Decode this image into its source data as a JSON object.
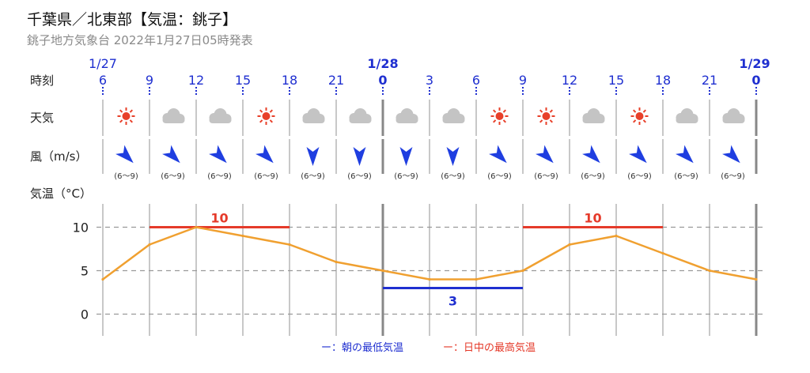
{
  "header": {
    "title": "千葉県／北東部【気温：銚子】",
    "subtitle": "銚子地方気象台 2022年1月27日05時発表"
  },
  "rows": {
    "time": "時刻",
    "weather": "天気",
    "wind": "風（m/s）",
    "temp": "気温（°C）"
  },
  "dates": [
    {
      "label": "1/27",
      "index": 0,
      "bold": false
    },
    {
      "label": "1/28",
      "index": 6,
      "bold": true
    },
    {
      "label": "1/29",
      "index": 14,
      "bold": true
    }
  ],
  "hours": [
    "6",
    "9",
    "12",
    "15",
    "18",
    "21",
    "0",
    "3",
    "6",
    "9",
    "12",
    "15",
    "18",
    "21",
    "0"
  ],
  "weather_icons": [
    "sun-icon",
    "cloud-icon",
    "cloud-icon",
    "sun-icon",
    "cloud-icon",
    "cloud-icon",
    "cloud-icon",
    "cloud-icon",
    "sun-icon",
    "sun-icon",
    "cloud-icon",
    "sun-icon",
    "cloud-icon",
    "cloud-icon"
  ],
  "wind": [
    {
      "dir": "NW",
      "range": "(6～9)"
    },
    {
      "dir": "NW",
      "range": "(6～9)"
    },
    {
      "dir": "NW",
      "range": "(6～9)"
    },
    {
      "dir": "NW",
      "range": "(6～9)"
    },
    {
      "dir": "N",
      "range": "(6～9)"
    },
    {
      "dir": "N",
      "range": "(6～9)"
    },
    {
      "dir": "N",
      "range": "(6～9)"
    },
    {
      "dir": "N",
      "range": "(6～9)"
    },
    {
      "dir": "NW",
      "range": "(6～9)"
    },
    {
      "dir": "NW",
      "range": "(6～9)"
    },
    {
      "dir": "NW",
      "range": "(6～9)"
    },
    {
      "dir": "NW",
      "range": "(6～9)"
    },
    {
      "dir": "NW",
      "range": "(6～9)"
    },
    {
      "dir": "NW",
      "range": "(6～9)"
    }
  ],
  "colors": {
    "line": "#f0a030",
    "max": "#e53a2a",
    "min": "#1f2fd0",
    "grid": "#999999",
    "arrow": "#1f3ee0",
    "sun": "#e8402a",
    "cloud": "#c4c4c4"
  },
  "legend": {
    "min": "ー：朝の最低気温",
    "max": "ー：日中の最高気温"
  },
  "chart_data": {
    "type": "line",
    "x": [
      "1/27 6",
      "9",
      "12",
      "15",
      "18",
      "21",
      "1/28 0",
      "3",
      "6",
      "9",
      "12",
      "15",
      "18",
      "21",
      "1/29 0"
    ],
    "series": [
      {
        "name": "",
        "values": [
          4,
          8,
          10,
          9,
          8,
          6,
          5,
          4,
          4,
          5,
          8,
          9,
          7,
          5,
          4
        ]
      }
    ],
    "ylabel": "気温（°C）",
    "yticks": [
      0,
      5,
      10
    ],
    "ylim": [
      -2.6,
      12.8
    ],
    "grid": true,
    "annotations": [
      {
        "label": "10",
        "kind": "max",
        "value": 10,
        "from": 1,
        "to": 4
      },
      {
        "label": "3",
        "kind": "min",
        "value": 3,
        "from": 6,
        "to": 9
      },
      {
        "label": "10",
        "kind": "max",
        "value": 10,
        "from": 9,
        "to": 12
      }
    ]
  }
}
